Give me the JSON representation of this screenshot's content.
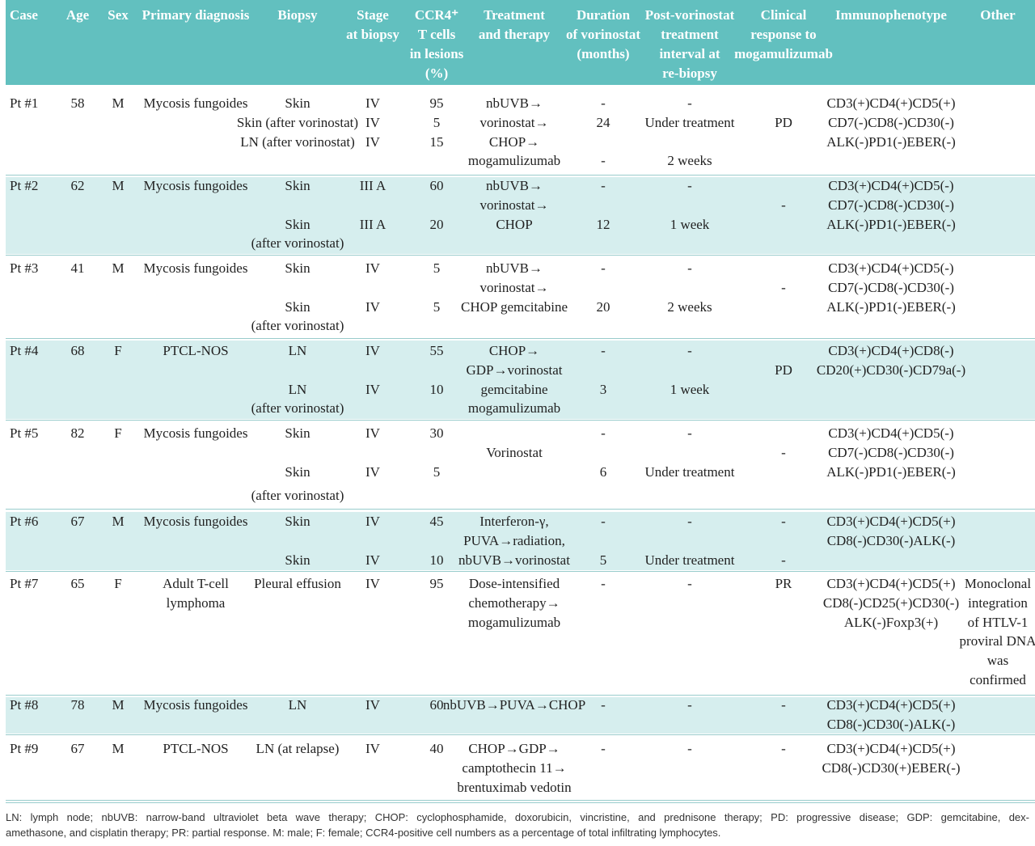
{
  "header": [
    [
      "Case"
    ],
    [
      "Age"
    ],
    [
      "Sex"
    ],
    [
      "Primary diagnosis"
    ],
    [
      "Biopsy"
    ],
    [
      "Stage",
      "at biopsy"
    ],
    [
      "CCR4⁺",
      "T cells",
      "in lesions",
      "(%)"
    ],
    [
      "Treatment",
      "and therapy"
    ],
    [
      "Duration",
      "of vorinostat",
      "(months)"
    ],
    [
      "Post-vorinostat",
      "treatment",
      "interval at",
      "re-biopsy"
    ],
    [
      "Clinical",
      "response to",
      "mogamulizumab"
    ],
    [
      "Immunophenotype"
    ],
    [
      "Other"
    ]
  ],
  "rows": [
    {
      "case": "Pt #1",
      "age": 58,
      "sex": "M",
      "diagnosis": [
        "Mycosis fungoides"
      ],
      "biopsy": [
        "Skin",
        "Skin (after vorinostat)",
        "LN (after vorinostat)"
      ],
      "stage": [
        "IV",
        "IV",
        "IV"
      ],
      "ccr4": [
        95,
        5,
        15
      ],
      "treatment": [
        "nbUVB→",
        "vorinostat→",
        "CHOP→",
        "mogamulizumab"
      ],
      "duration": [
        "-",
        24,
        "-"
      ],
      "interval": [
        "-",
        "Under treatment",
        "2 weeks"
      ],
      "response": [
        "PD"
      ],
      "immunophenotype": [
        "CD3(+)CD4(+)CD5(+)",
        "CD7(-)CD8(-)CD30(-)",
        "ALK(-)PD1(-)EBER(-)"
      ]
    },
    {
      "case": "Pt #2",
      "age": 62,
      "sex": "M",
      "diagnosis": [
        "Mycosis fungoides"
      ],
      "biopsy": [
        "Skin",
        "Skin",
        "(after vorinostat)"
      ],
      "stage": [
        "III A",
        "III A"
      ],
      "ccr4": [
        60,
        20
      ],
      "treatment": [
        "nbUVB→",
        "vorinostat→",
        "CHOP"
      ],
      "duration": [
        "-",
        12
      ],
      "interval": [
        "-",
        "1 week"
      ],
      "response": [
        "-"
      ],
      "immunophenotype": [
        "CD3(+)CD4(+)CD5(-)",
        "CD7(-)CD8(-)CD30(-)",
        "ALK(-)PD1(-)EBER(-)"
      ]
    },
    {
      "case": "Pt #3",
      "age": 41,
      "sex": "M",
      "diagnosis": [
        "Mycosis fungoides"
      ],
      "biopsy": [
        "Skin",
        "Skin",
        "(after vorinostat)"
      ],
      "stage": [
        "IV",
        "IV"
      ],
      "ccr4": [
        5,
        5
      ],
      "treatment": [
        "nbUVB→",
        "vorinostat→",
        "CHOP gemcitabine"
      ],
      "duration": [
        "-",
        20
      ],
      "interval": [
        "-",
        "2 weeks"
      ],
      "response": [
        "-"
      ],
      "immunophenotype": [
        "CD3(+)CD4(+)CD5(-)",
        "CD7(-)CD8(-)CD30(-)",
        "ALK(-)PD1(-)EBER(-)"
      ]
    },
    {
      "case": "Pt #4",
      "age": 68,
      "sex": "F",
      "diagnosis": [
        "PTCL-NOS"
      ],
      "biopsy": [
        "LN",
        "LN",
        "(after vorinostat)"
      ],
      "stage": [
        "IV",
        "IV"
      ],
      "ccr4": [
        55,
        10
      ],
      "treatment": [
        "CHOP→",
        "GDP→vorinostat",
        "gemcitabine",
        "mogamulizumab"
      ],
      "duration": [
        "-",
        3
      ],
      "interval": [
        "-",
        "1 week"
      ],
      "response": [
        "PD"
      ],
      "immunophenotype": [
        "CD3(+)CD4(+)CD8(-)",
        "CD20(+)CD30(-)CD79a(-)"
      ]
    },
    {
      "case": "Pt #5",
      "age": 82,
      "sex": "F",
      "diagnosis": [
        "Mycosis fungoides"
      ],
      "biopsy": [
        "Skin",
        "Skin",
        "(after vorinostat)"
      ],
      "stage": [
        "IV",
        "IV"
      ],
      "ccr4": [
        30,
        5
      ],
      "treatment": [
        "Vorinostat"
      ],
      "duration": [
        "-",
        6
      ],
      "interval": [
        "-",
        "Under treatment"
      ],
      "response": [
        "-"
      ],
      "immunophenotype": [
        "CD3(+)CD4(+)CD5(-)",
        "CD7(-)CD8(-)CD30(-)",
        "ALK(-)PD1(-)EBER(-)"
      ]
    },
    {
      "case": "Pt #6",
      "age": 67,
      "sex": "M",
      "diagnosis": [
        "Mycosis fungoides"
      ],
      "biopsy": [
        "Skin",
        "Skin"
      ],
      "stage": [
        "IV",
        "IV"
      ],
      "ccr4": [
        45,
        10
      ],
      "treatment": [
        "Interferon-γ,",
        "PUVA→radiation,",
        "nbUVB→vorinostat"
      ],
      "duration": [
        "-",
        5
      ],
      "interval": [
        "-",
        "Under treatment"
      ],
      "response": [
        "-",
        "-"
      ],
      "immunophenotype": [
        "CD3(+)CD4(+)CD5(+)",
        "CD8(-)CD30(-)ALK(-)"
      ]
    },
    {
      "case": "Pt #7",
      "age": 65,
      "sex": "F",
      "diagnosis": [
        "Adult T-cell",
        "lymphoma"
      ],
      "biopsy": [
        "Pleural effusion"
      ],
      "stage": [
        "IV"
      ],
      "ccr4": [
        95
      ],
      "treatment": [
        "Dose-intensified",
        "chemotherapy→",
        "mogamulizumab"
      ],
      "duration": [
        "-"
      ],
      "interval": [
        "-"
      ],
      "response": [
        "PR"
      ],
      "immunophenotype": [
        "CD3(+)CD4(+)CD5(+)",
        "CD8(-)CD25(+)CD30(-)",
        "ALK(-)Foxp3(+)"
      ],
      "other": [
        "Monoclonal",
        "integration",
        "of HTLV-1",
        "proviral DNA",
        "was",
        "confirmed"
      ]
    },
    {
      "case": "Pt #8",
      "age": 78,
      "sex": "M",
      "diagnosis": [
        "Mycosis fungoides"
      ],
      "biopsy": [
        "LN"
      ],
      "stage": [
        "IV"
      ],
      "ccr4": [
        60
      ],
      "treatment": [
        "nbUVB→PUVA→CHOP"
      ],
      "duration": [
        "-"
      ],
      "interval": [
        "-"
      ],
      "response": [
        "-"
      ],
      "immunophenotype": [
        "CD3(+)CD4(+)CD5(+)",
        "CD8(-)CD30(-)ALK(-)"
      ]
    },
    {
      "case": "Pt #9",
      "age": 67,
      "sex": "M",
      "diagnosis": [
        "PTCL-NOS"
      ],
      "biopsy": [
        "LN (at relapse)"
      ],
      "stage": [
        "IV"
      ],
      "ccr4": [
        40
      ],
      "treatment": [
        "CHOP→GDP→",
        "camptothecin 11→",
        "brentuximab vedotin"
      ],
      "duration": [
        "-"
      ],
      "interval": [
        "-"
      ],
      "response": [
        "-"
      ],
      "immunophenotype": [
        "CD3(+)CD4(+)CD5(+)",
        "CD8(-)CD30(+)EBER(-)"
      ]
    }
  ],
  "footer": [
    "LN: lymph node; nbUVB: narrow-band ultraviolet beta wave therapy; CHOP: cyclophosphamide, doxorubicin, vincristine, and prednisone therapy; PD: progressive disease; GDP: gemcitabine, dex-",
    "amethasone, and cisplatin therapy; PR: partial response. M: male; F: female; CCR4-positive cell numbers as a percentage of total infiltrating lymphocytes."
  ]
}
